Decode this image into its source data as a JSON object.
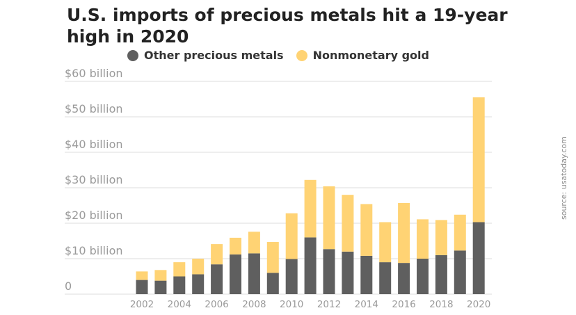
{
  "title": "U.S. imports of precious metals hit a 19-year high in 2020",
  "source": "source: usatoday.com",
  "colors": {
    "other": "#5f5f5f",
    "gold": "#ffd374",
    "grid": "#dcdcdc",
    "tick": "#9a9a9a"
  },
  "legend": [
    {
      "label": "Other precious metals",
      "color": "#5f5f5f"
    },
    {
      "label": "Nonmonetary gold",
      "color": "#ffd374"
    }
  ],
  "chart_data": {
    "type": "bar",
    "stacked": true,
    "title": "U.S. imports of precious metals hit a 19-year high in 2020",
    "categories": [
      2002,
      2003,
      2004,
      2005,
      2006,
      2007,
      2008,
      2009,
      2010,
      2011,
      2012,
      2013,
      2014,
      2015,
      2016,
      2017,
      2018,
      2019,
      2020
    ],
    "series": [
      {
        "name": "Other precious metals",
        "values": [
          4.0,
          3.8,
          5.0,
          5.6,
          8.4,
          11.2,
          11.5,
          6.0,
          9.9,
          16.0,
          12.7,
          12.0,
          10.8,
          9.0,
          8.8,
          10.0,
          11.0,
          12.3,
          20.3
        ]
      },
      {
        "name": "Nonmonetary gold",
        "values": [
          2.4,
          3.0,
          4.0,
          4.4,
          5.7,
          4.7,
          6.1,
          8.7,
          12.9,
          16.2,
          17.7,
          16.0,
          14.6,
          11.3,
          16.9,
          11.1,
          9.9,
          10.1,
          35.2
        ]
      }
    ],
    "ylim": [
      0,
      60
    ],
    "yticks": [
      0,
      10,
      20,
      30,
      40,
      50,
      60
    ],
    "ytick_labels": [
      "0",
      "$10 billion",
      "$20 billion",
      "$30 billion",
      "$40 billion",
      "$50 billion",
      "$60 billion"
    ],
    "xtick_labels": [
      "2002",
      "2004",
      "2006",
      "2008",
      "2010",
      "2012",
      "2014",
      "2016",
      "2018",
      "2020"
    ],
    "grid": true,
    "legend_position": "top"
  }
}
